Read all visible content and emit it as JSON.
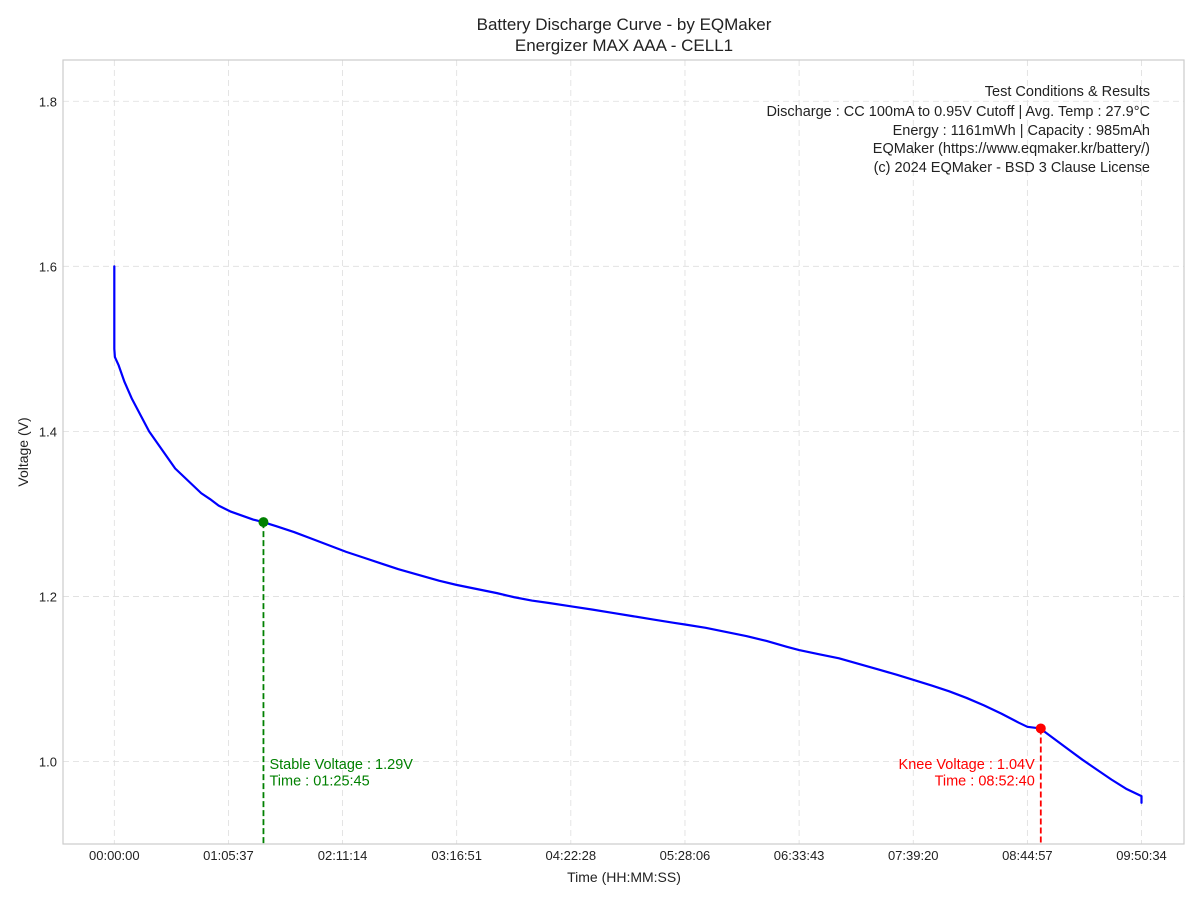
{
  "chart_data": {
    "type": "line",
    "title": "Battery Discharge Curve - by EQMaker",
    "subtitle": "Energizer MAX AAA - CELL1",
    "xlabel": "Time (HH:MM:SS)",
    "ylabel": "Voltage (V)",
    "x_unit": "seconds",
    "xlim": [
      -1770,
      36900
    ],
    "ylim": [
      0.9,
      1.85
    ],
    "x_ticks": [
      {
        "value": 0,
        "label": "00:00:00"
      },
      {
        "value": 3937,
        "label": "01:05:37"
      },
      {
        "value": 7874,
        "label": "02:11:14"
      },
      {
        "value": 11811,
        "label": "03:16:51"
      },
      {
        "value": 15748,
        "label": "04:22:28"
      },
      {
        "value": 19686,
        "label": "05:28:06"
      },
      {
        "value": 23623,
        "label": "06:33:43"
      },
      {
        "value": 27560,
        "label": "07:39:20"
      },
      {
        "value": 31497,
        "label": "08:44:57"
      },
      {
        "value": 35434,
        "label": "09:50:34"
      }
    ],
    "y_ticks": [
      {
        "value": 1.0,
        "label": "1.0"
      },
      {
        "value": 1.2,
        "label": "1.2"
      },
      {
        "value": 1.4,
        "label": "1.4"
      },
      {
        "value": 1.6,
        "label": "1.6"
      },
      {
        "value": 1.8,
        "label": "1.8"
      }
    ],
    "grid": true,
    "series": [
      {
        "color": "#0000ff",
        "x": [
          0,
          0,
          20,
          150,
          350,
          600,
          900,
          1200,
          1500,
          1800,
          2100,
          2400,
          2700,
          3000,
          3300,
          3600,
          4000,
          4400,
          4800,
          5145,
          5600,
          6200,
          6800,
          7400,
          8000,
          8600,
          9200,
          9800,
          10500,
          11200,
          11800,
          12500,
          13200,
          13800,
          14400,
          15000,
          15748,
          16500,
          17200,
          17900,
          18600,
          19300,
          19686,
          20400,
          21100,
          21800,
          22500,
          23200,
          23623,
          24300,
          25000,
          25700,
          26400,
          27000,
          27560,
          28200,
          28800,
          29400,
          30000,
          30600,
          31200,
          31497,
          31940,
          32400,
          32900,
          33400,
          33900,
          34400,
          34900,
          35434,
          35434
        ],
        "y": [
          1.6,
          1.5,
          1.49,
          1.48,
          1.46,
          1.44,
          1.42,
          1.4,
          1.385,
          1.37,
          1.355,
          1.345,
          1.335,
          1.325,
          1.318,
          1.31,
          1.303,
          1.298,
          1.293,
          1.29,
          1.285,
          1.278,
          1.27,
          1.262,
          1.254,
          1.247,
          1.24,
          1.233,
          1.226,
          1.219,
          1.214,
          1.209,
          1.204,
          1.199,
          1.195,
          1.192,
          1.188,
          1.184,
          1.18,
          1.176,
          1.172,
          1.168,
          1.166,
          1.162,
          1.157,
          1.152,
          1.146,
          1.139,
          1.135,
          1.13,
          1.125,
          1.118,
          1.111,
          1.105,
          1.099,
          1.092,
          1.085,
          1.077,
          1.068,
          1.058,
          1.047,
          1.042,
          1.04,
          1.028,
          1.015,
          1.002,
          0.99,
          0.978,
          0.967,
          0.958,
          0.95
        ]
      }
    ],
    "annotations": [
      {
        "x": 5145,
        "y": 1.29,
        "color": "#008000",
        "align": "left",
        "lines": [
          "Stable Voltage : 1.29V",
          "Time : 01:25:45"
        ]
      },
      {
        "x": 31960,
        "y": 1.04,
        "color": "#ff0000",
        "align": "right",
        "lines": [
          "Knee Voltage : 1.04V",
          "Time : 08:52:40"
        ]
      }
    ],
    "info_box": [
      "Test Conditions & Results",
      "Discharge : CC 100mA to 0.95V Cutoff | Avg. Temp : 27.9°C",
      "Energy : 1161mWh | Capacity : 985mAh",
      "EQMaker (https://www.eqmaker.kr/battery/)",
      "(c) 2024 EQMaker - BSD 3 Clause License"
    ],
    "colors": {
      "line": "#0000ff",
      "stable": "#008000",
      "knee": "#ff0000",
      "grid": "#dddddd",
      "frame": "#cccccc"
    }
  }
}
